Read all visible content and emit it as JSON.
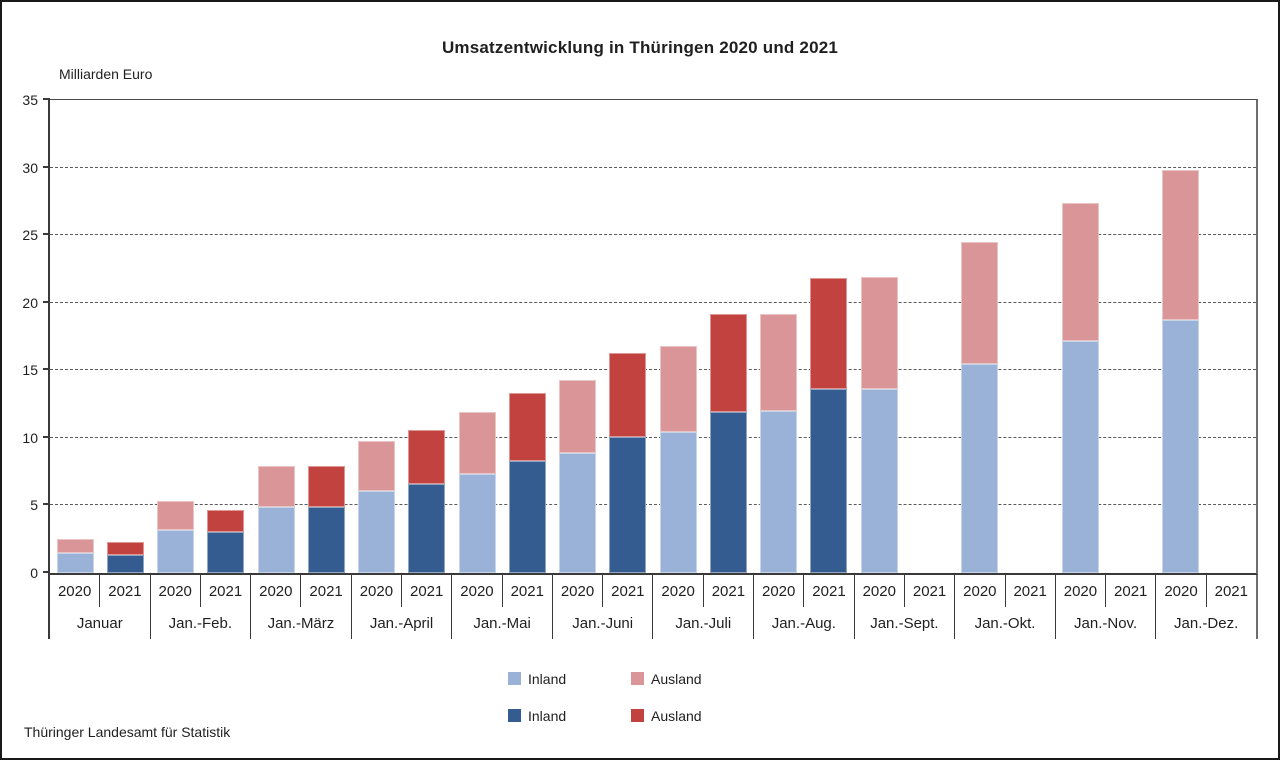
{
  "title": "Umsatzentwicklung in Thüringen 2020 und 2021",
  "y_axis_label": "Milliarden Euro",
  "source": "Thüringer Landesamt für Statistik",
  "colors": {
    "inland_2020": "#9AB2D8",
    "ausland_2020": "#D99598",
    "inland_2021": "#355C90",
    "ausland_2021": "#C2423F",
    "axis": "#3a3a3a",
    "grid": "#5a5a5a"
  },
  "legend": {
    "rows": [
      {
        "year": "2020",
        "items": [
          {
            "label": "Inland",
            "color": "#9AB2D8"
          },
          {
            "label": "Ausland",
            "color": "#D99598"
          }
        ]
      },
      {
        "year": "2021",
        "items": [
          {
            "label": "Inland",
            "color": "#355C90"
          },
          {
            "label": "Ausland",
            "color": "#C2423F"
          }
        ]
      }
    ]
  },
  "chart_data": {
    "type": "bar",
    "stacked": true,
    "title": "Umsatzentwicklung in Thüringen 2020 und 2021",
    "ylabel": "Milliarden Euro",
    "unit": "Milliarden Euro",
    "ylim": [
      0,
      35
    ],
    "yticks": [
      0,
      5,
      10,
      15,
      20,
      25,
      30,
      35
    ],
    "grid": "horizontal-dashed",
    "legend_position": "bottom",
    "categories": [
      "Januar",
      "Jan.-Feb.",
      "Jan.-März",
      "Jan.-April",
      "Jan.-Mai",
      "Jan.-Juni",
      "Jan.-Juli",
      "Jan.-Aug.",
      "Jan.-Sept.",
      "Jan.-Okt.",
      "Jan.-Nov.",
      "Jan.-Dez."
    ],
    "group_years": [
      "2020",
      "2021"
    ],
    "series": [
      {
        "name": "Inland",
        "year": "2020",
        "color": "#9AB2D8",
        "values": [
          1.5,
          3.2,
          4.9,
          6.1,
          7.3,
          8.9,
          10.4,
          12.0,
          13.6,
          15.5,
          17.2,
          18.7
        ]
      },
      {
        "name": "Ausland",
        "year": "2020",
        "color": "#D99598",
        "values": [
          1.0,
          2.1,
          3.0,
          3.7,
          4.6,
          5.4,
          6.4,
          7.2,
          8.3,
          9.0,
          10.2,
          11.1
        ]
      },
      {
        "name": "Inland",
        "year": "2021",
        "color": "#355C90",
        "values": [
          1.3,
          3.0,
          4.9,
          6.6,
          8.3,
          10.1,
          11.9,
          13.6,
          null,
          null,
          null,
          null
        ]
      },
      {
        "name": "Ausland",
        "year": "2021",
        "color": "#C2423F",
        "values": [
          1.0,
          1.7,
          3.0,
          4.0,
          5.0,
          6.2,
          7.3,
          8.2,
          null,
          null,
          null,
          null
        ]
      }
    ]
  }
}
